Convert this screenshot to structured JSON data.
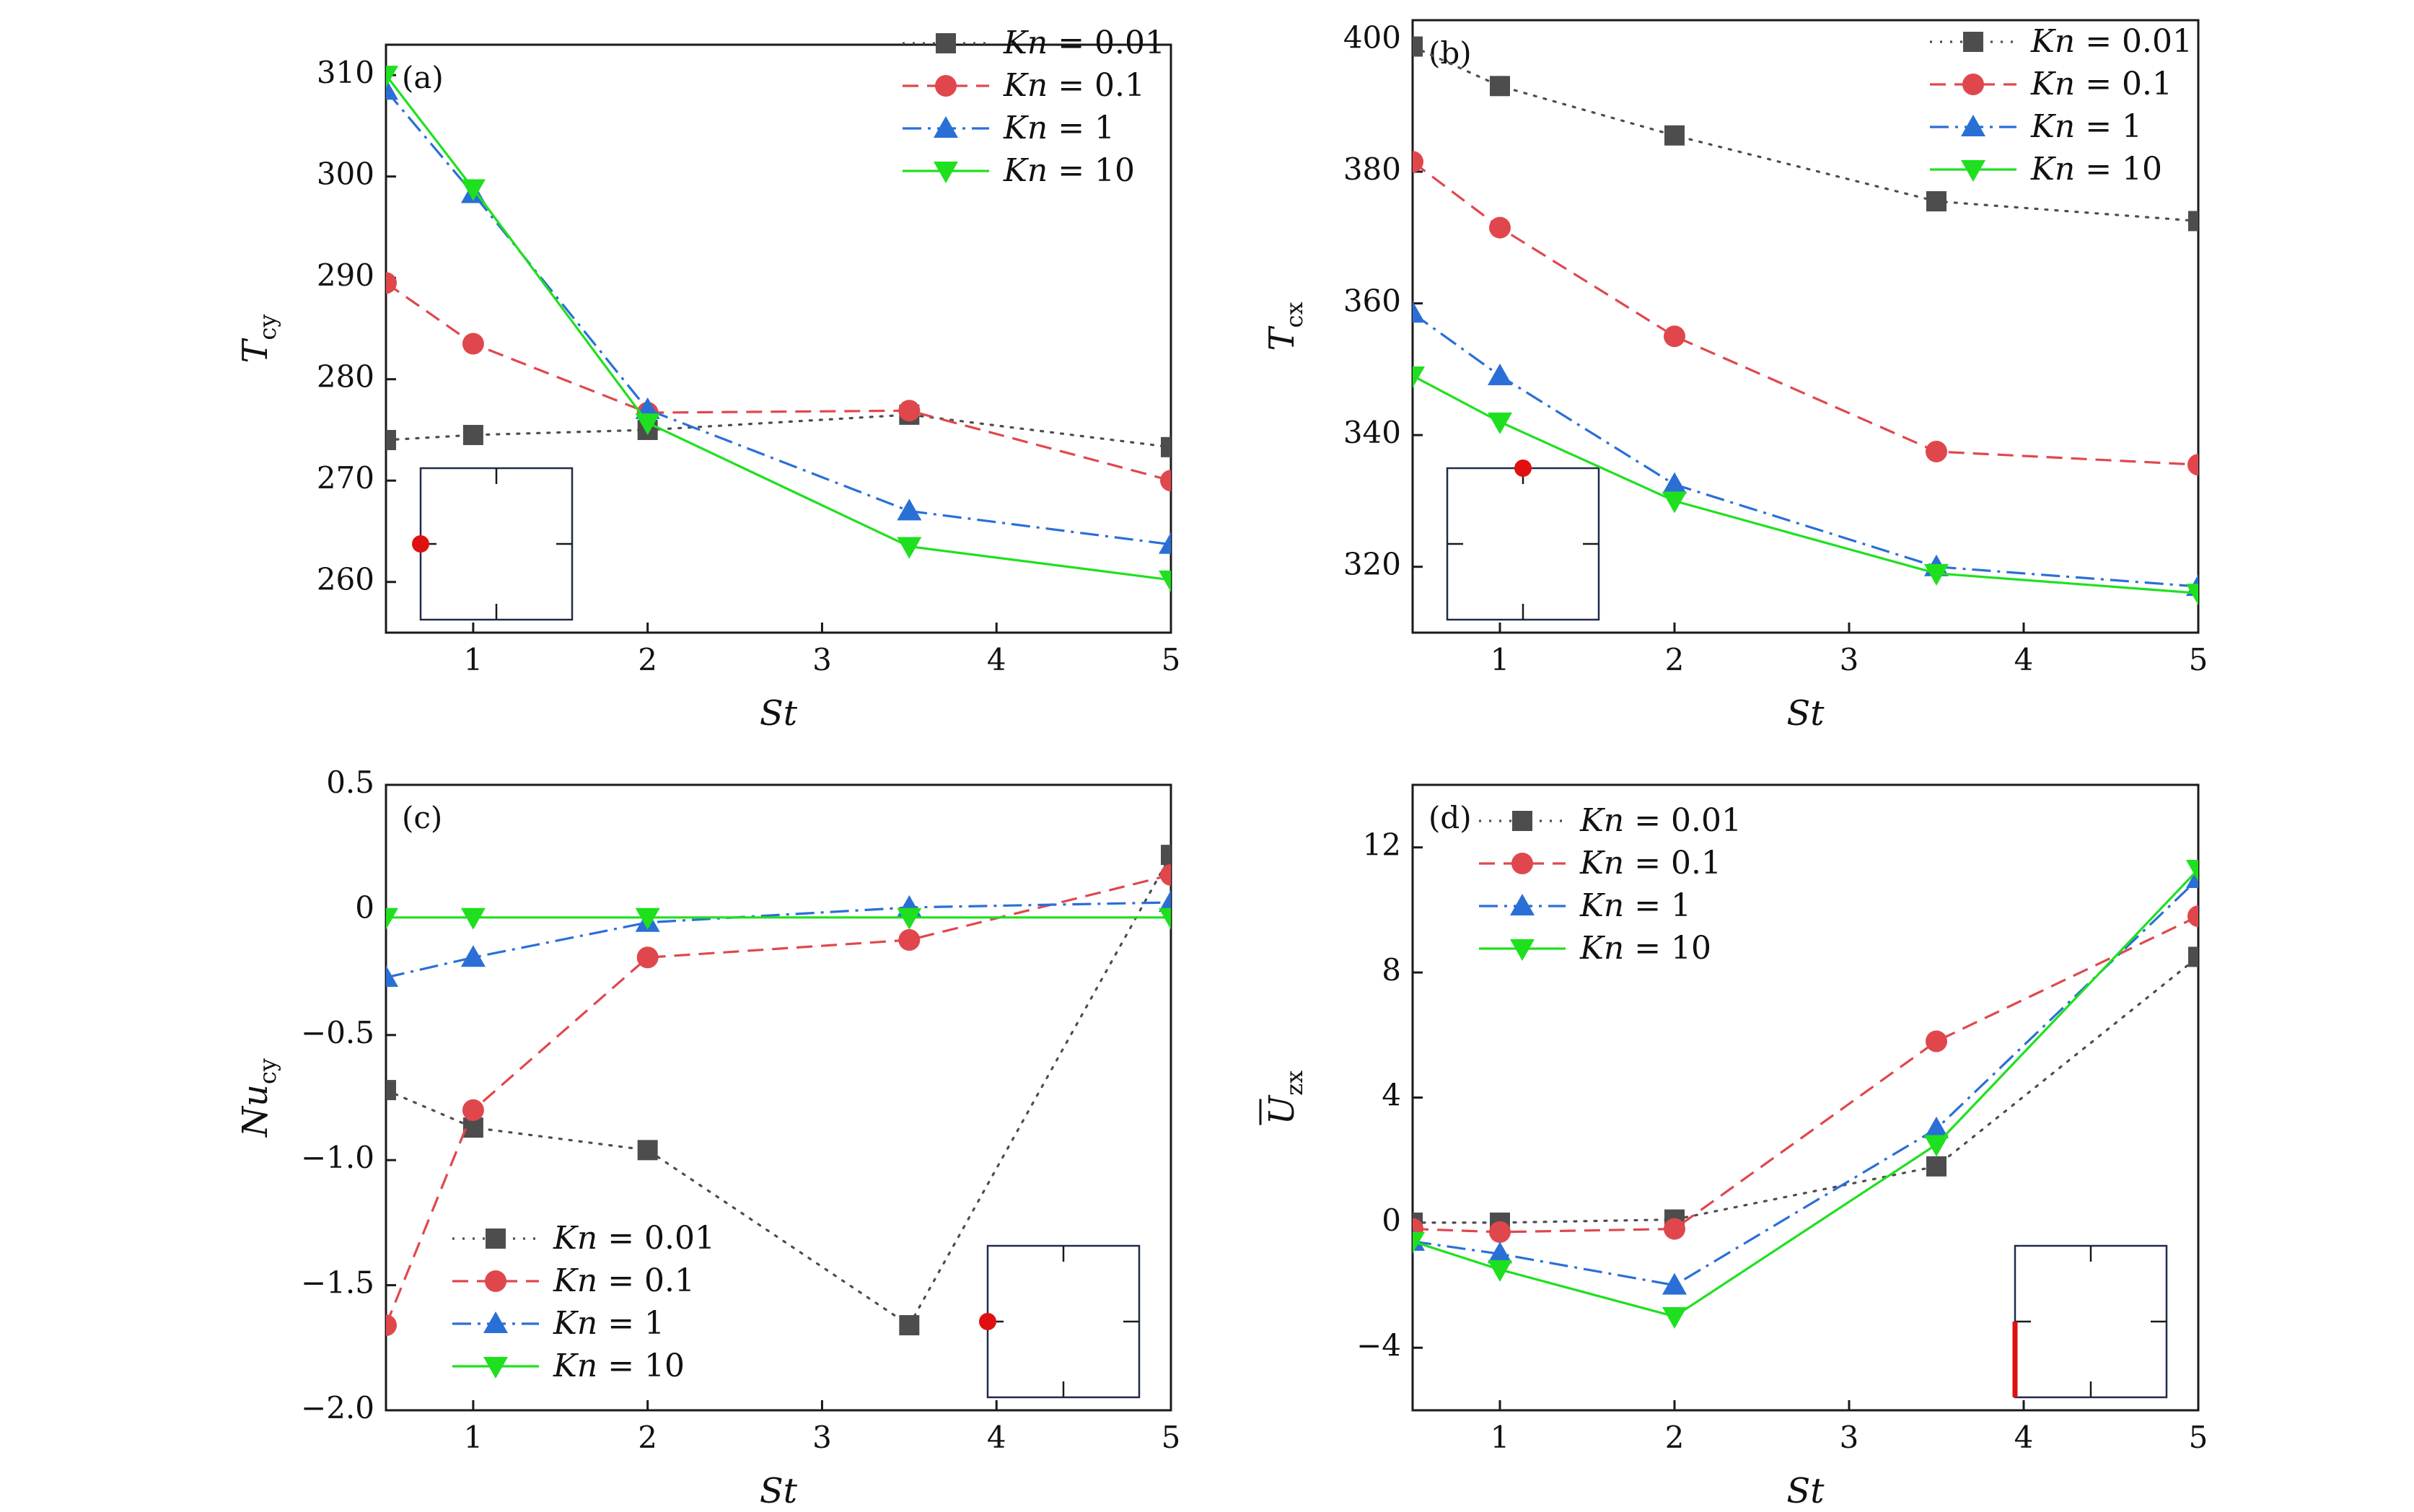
{
  "legend_prefix": "Kn",
  "series_styles": [
    {
      "name": "Kn = 0.01",
      "label_value": "0.01",
      "color": "#4d4d4d",
      "dash": "3,11",
      "marker": "square"
    },
    {
      "name": "Kn = 0.1",
      "label_value": "0.1",
      "color": "#e0474c",
      "dash": "22,12",
      "marker": "circle"
    },
    {
      "name": "Kn = 1",
      "label_value": "1",
      "color": "#2a6fd6",
      "dash": "26,9,4,9",
      "marker": "triangle-up"
    },
    {
      "name": "Kn = 10",
      "label_value": "10",
      "color": "#1fe01f",
      "dash": "",
      "marker": "triangle-down"
    }
  ],
  "inset_marker_color": "#e01010",
  "chart_data": [
    {
      "type": "line",
      "panel": "(a)",
      "xlabel": "St",
      "ylabel_main": "T",
      "ylabel_sub": "cy",
      "xlim": [
        0.5,
        5
      ],
      "ylim": [
        255,
        313
      ],
      "xticks": [
        1,
        2,
        3,
        4,
        5
      ],
      "yticks": [
        260,
        270,
        280,
        290,
        300,
        310
      ],
      "ytick_labels": [
        "260",
        "270",
        "280",
        "290",
        "300",
        "310"
      ],
      "legend_loc": "top-right",
      "inset_loc": "bottom-left",
      "inset_marker": "left-middle-point",
      "x": [
        0.5,
        1,
        2,
        3.5,
        5
      ],
      "series": [
        {
          "name": "Kn = 0.01",
          "values": [
            274.0,
            274.5,
            275.0,
            276.5,
            273.3
          ]
        },
        {
          "name": "Kn = 0.1",
          "values": [
            289.5,
            283.5,
            276.7,
            276.9,
            270.0
          ]
        },
        {
          "name": "Kn = 1",
          "values": [
            308.5,
            298.3,
            277.0,
            267.0,
            263.7
          ]
        },
        {
          "name": "Kn = 10",
          "values": [
            310.0,
            298.8,
            275.7,
            263.5,
            260.2
          ]
        }
      ]
    },
    {
      "type": "line",
      "panel": "(b)",
      "xlabel": "St",
      "ylabel_main": "T",
      "ylabel_sub": "cx",
      "xlim": [
        0.5,
        5
      ],
      "ylim": [
        310,
        403
      ],
      "xticks": [
        1,
        2,
        3,
        4,
        5
      ],
      "yticks": [
        320,
        340,
        360,
        380,
        400
      ],
      "ytick_labels": [
        "320",
        "340",
        "360",
        "380",
        "400"
      ],
      "legend_loc": "top-right",
      "inset_loc": "bottom-left",
      "inset_marker": "top-middle-point",
      "x": [
        0.5,
        1,
        2,
        3.5,
        5
      ],
      "series": [
        {
          "name": "Kn = 0.01",
          "values": [
            399.0,
            393.0,
            385.5,
            375.5,
            372.5
          ]
        },
        {
          "name": "Kn = 0.1",
          "values": [
            381.5,
            371.5,
            355.0,
            337.5,
            335.5
          ]
        },
        {
          "name": "Kn = 1",
          "values": [
            358.5,
            349.0,
            332.5,
            320.0,
            317.0
          ]
        },
        {
          "name": "Kn = 10",
          "values": [
            349.0,
            342.0,
            330.0,
            319.0,
            316.0
          ]
        }
      ]
    },
    {
      "type": "line",
      "panel": "(c)",
      "xlabel": "St",
      "ylabel_main": "Nu",
      "ylabel_sub": "cy",
      "xlim": [
        0.5,
        5
      ],
      "ylim": [
        -2.0,
        0.5
      ],
      "xticks": [
        1,
        2,
        3,
        4,
        5
      ],
      "yticks": [
        -2.0,
        -1.5,
        -1.0,
        -0.5,
        0,
        0.5
      ],
      "ytick_labels": [
        "−2.0",
        "−1.5",
        "−1.0",
        "−0.5",
        "0",
        "0.5"
      ],
      "legend_loc": "bottom-left",
      "inset_loc": "bottom-right",
      "inset_marker": "left-middle-point",
      "x": [
        0.5,
        1,
        2,
        3.5,
        5
      ],
      "series": [
        {
          "name": "Kn = 0.01",
          "values": [
            -0.72,
            -0.87,
            -0.96,
            -1.66,
            0.22
          ]
        },
        {
          "name": "Kn = 0.1",
          "values": [
            -1.66,
            -0.8,
            -0.19,
            -0.12,
            0.14
          ]
        },
        {
          "name": "Kn = 1",
          "values": [
            -0.27,
            -0.19,
            -0.05,
            0.01,
            0.03
          ]
        },
        {
          "name": "Kn = 10",
          "values": [
            -0.03,
            -0.03,
            -0.03,
            -0.03,
            -0.03
          ]
        }
      ]
    },
    {
      "type": "line",
      "panel": "(d)",
      "xlabel": "St",
      "ylabel_main": "U",
      "ylabel_sub": "zx",
      "ylabel_overline": true,
      "xlim": [
        0.5,
        5
      ],
      "ylim": [
        -6,
        14
      ],
      "xticks": [
        1,
        2,
        3,
        4,
        5
      ],
      "yticks": [
        -4,
        0,
        4,
        8,
        12
      ],
      "ytick_labels": [
        "−4",
        "0",
        "4",
        "8",
        "12"
      ],
      "legend_loc": "top-left",
      "inset_loc": "bottom-right",
      "inset_marker": "left-lower-edge",
      "x": [
        0.5,
        1,
        2,
        3.5,
        5
      ],
      "series": [
        {
          "name": "Kn = 0.01",
          "values": [
            0.0,
            0.0,
            0.1,
            1.8,
            8.5
          ]
        },
        {
          "name": "Kn = 0.1",
          "values": [
            -0.2,
            -0.3,
            -0.2,
            5.8,
            9.8
          ]
        },
        {
          "name": "Kn = 1",
          "values": [
            -0.6,
            -1.0,
            -2.0,
            3.0,
            11.0
          ]
        },
        {
          "name": "Kn = 10",
          "values": [
            -0.6,
            -1.5,
            -3.0,
            2.5,
            11.3
          ]
        }
      ]
    }
  ]
}
